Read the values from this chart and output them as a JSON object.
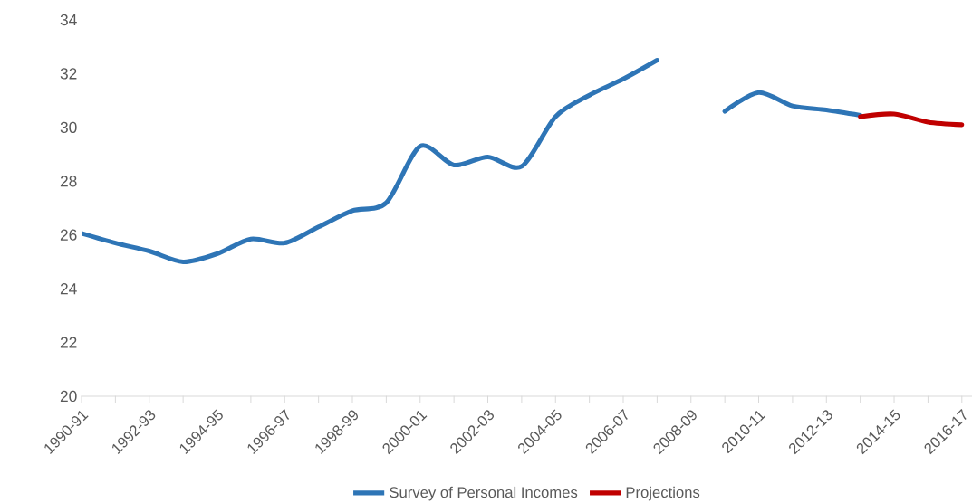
{
  "chart_data": {
    "type": "line",
    "categories": [
      "1990-91",
      null,
      "1992-93",
      null,
      "1994-95",
      null,
      "1996-97",
      null,
      "1998-99",
      null,
      "2000-01",
      null,
      "2002-03",
      null,
      "2004-05",
      null,
      "2006-07",
      null,
      "2008-09",
      null,
      "2010-11",
      null,
      "2012-13",
      null,
      "2014-15",
      null,
      "2016-17"
    ],
    "series": [
      {
        "name": "Survey of Personal Incomes",
        "color": "#2e75b6",
        "values": [
          26.06,
          25.7,
          25.4,
          25.0,
          25.3,
          25.85,
          25.7,
          26.3,
          26.9,
          27.2,
          29.3,
          28.6,
          28.9,
          28.55,
          30.4,
          31.2,
          31.8,
          32.5,
          null,
          30.6,
          31.3,
          30.8,
          30.65,
          30.45,
          null,
          null,
          null
        ]
      },
      {
        "name": "Projections",
        "color": "#c00000",
        "values": [
          null,
          null,
          null,
          null,
          null,
          null,
          null,
          null,
          null,
          null,
          null,
          null,
          null,
          null,
          null,
          null,
          null,
          null,
          null,
          null,
          null,
          null,
          null,
          30.4,
          30.5,
          30.2,
          30.1
        ]
      }
    ],
    "ylim": [
      20,
      34
    ],
    "yticks": [
      20,
      22,
      24,
      26,
      28,
      30,
      32,
      34
    ],
    "grid": false,
    "legend": "bottom",
    "marker": "none",
    "line_style": "solid"
  }
}
